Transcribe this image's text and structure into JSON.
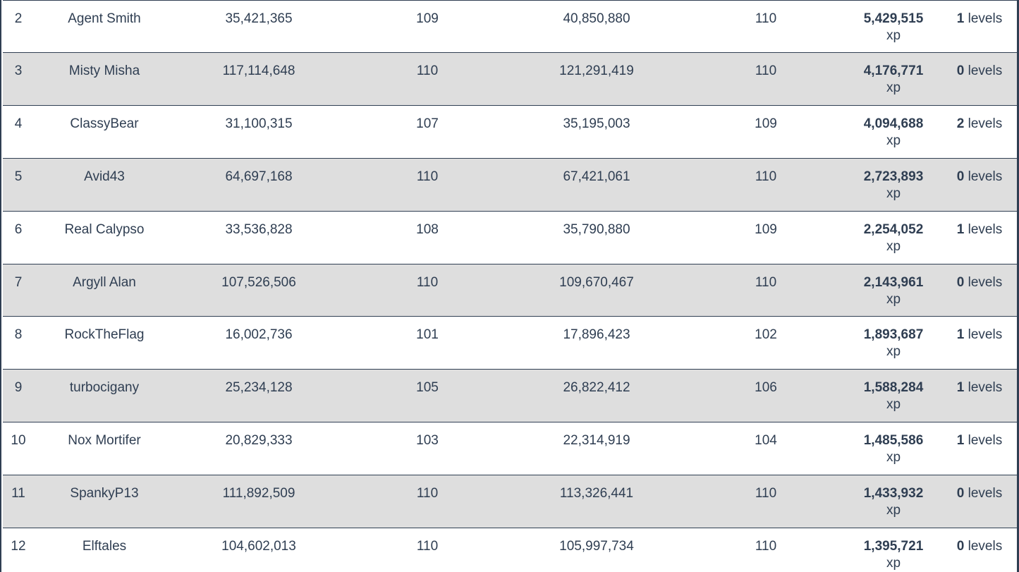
{
  "rows": [
    {
      "rank": "2",
      "name": "Agent Smith",
      "start_xp": "35,421,365",
      "start_level": "109",
      "end_xp": "40,850,880",
      "end_level": "110",
      "gained": "5,429,515",
      "unit": "xp",
      "levels_num": "1",
      "levels_label": " levels"
    },
    {
      "rank": "3",
      "name": "Misty Misha",
      "start_xp": "117,114,648",
      "start_level": "110",
      "end_xp": "121,291,419",
      "end_level": "110",
      "gained": "4,176,771",
      "unit": "xp",
      "levels_num": "0",
      "levels_label": " levels"
    },
    {
      "rank": "4",
      "name": "ClassyBear",
      "start_xp": "31,100,315",
      "start_level": "107",
      "end_xp": "35,195,003",
      "end_level": "109",
      "gained": "4,094,688",
      "unit": "xp",
      "levels_num": "2",
      "levels_label": " levels"
    },
    {
      "rank": "5",
      "name": "Avid43",
      "start_xp": "64,697,168",
      "start_level": "110",
      "end_xp": "67,421,061",
      "end_level": "110",
      "gained": "2,723,893",
      "unit": "xp",
      "levels_num": "0",
      "levels_label": " levels"
    },
    {
      "rank": "6",
      "name": "Real Calypso",
      "start_xp": "33,536,828",
      "start_level": "108",
      "end_xp": "35,790,880",
      "end_level": "109",
      "gained": "2,254,052",
      "unit": "xp",
      "levels_num": "1",
      "levels_label": " levels"
    },
    {
      "rank": "7",
      "name": "Argyll Alan",
      "start_xp": "107,526,506",
      "start_level": "110",
      "end_xp": "109,670,467",
      "end_level": "110",
      "gained": "2,143,961",
      "unit": "xp",
      "levels_num": "0",
      "levels_label": " levels"
    },
    {
      "rank": "8",
      "name": "RockTheFlag",
      "start_xp": "16,002,736",
      "start_level": "101",
      "end_xp": "17,896,423",
      "end_level": "102",
      "gained": "1,893,687",
      "unit": "xp",
      "levels_num": "1",
      "levels_label": " levels"
    },
    {
      "rank": "9",
      "name": "turbocigany",
      "start_xp": "25,234,128",
      "start_level": "105",
      "end_xp": "26,822,412",
      "end_level": "106",
      "gained": "1,588,284",
      "unit": "xp",
      "levels_num": "1",
      "levels_label": " levels"
    },
    {
      "rank": "10",
      "name": "Nox Mortifer",
      "start_xp": "20,829,333",
      "start_level": "103",
      "end_xp": "22,314,919",
      "end_level": "104",
      "gained": "1,485,586",
      "unit": "xp",
      "levels_num": "1",
      "levels_label": " levels"
    },
    {
      "rank": "11",
      "name": "SpankyP13",
      "start_xp": "111,892,509",
      "start_level": "110",
      "end_xp": "113,326,441",
      "end_level": "110",
      "gained": "1,433,932",
      "unit": "xp",
      "levels_num": "0",
      "levels_label": " levels"
    },
    {
      "rank": "12",
      "name": "Elftales",
      "start_xp": "104,602,013",
      "start_level": "110",
      "end_xp": "105,997,734",
      "end_level": "110",
      "gained": "1,395,721",
      "unit": "xp",
      "levels_num": "0",
      "levels_label": " levels"
    }
  ],
  "colors": {
    "text": "#2f3e52",
    "row_alt": "#dedede",
    "row": "#ffffff",
    "border": "#2f3e52"
  }
}
